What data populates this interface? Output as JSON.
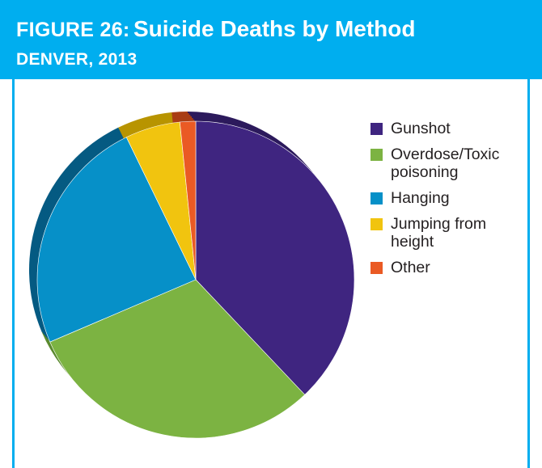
{
  "header": {
    "figure_label": "FIGURE 26:",
    "title": "Suicide Deaths by Method",
    "subtitle": "DENVER, 2013"
  },
  "colors": {
    "header_bg": "#00aeef",
    "text": "#231f20"
  },
  "chart_data": {
    "type": "pie",
    "style": "3d-tilted",
    "title": "Suicide Deaths by Method",
    "subtitle": "DENVER, 2013",
    "legend_position": "right",
    "categories": [
      "Gunshot",
      "Overdose/Toxic poisoning",
      "Hanging",
      "Jumping from height",
      "Other"
    ],
    "values": [
      37.9,
      30.6,
      24.2,
      5.6,
      1.6
    ],
    "unit": "percent (estimated)",
    "colors": [
      "#3f2580",
      "#7cb342",
      "#0690c8",
      "#f1c40f",
      "#ea5a24"
    ],
    "dark_colors": [
      "#2c1a5c",
      "#5b8a2f",
      "#055a82",
      "#b89400",
      "#a93d14"
    ]
  }
}
